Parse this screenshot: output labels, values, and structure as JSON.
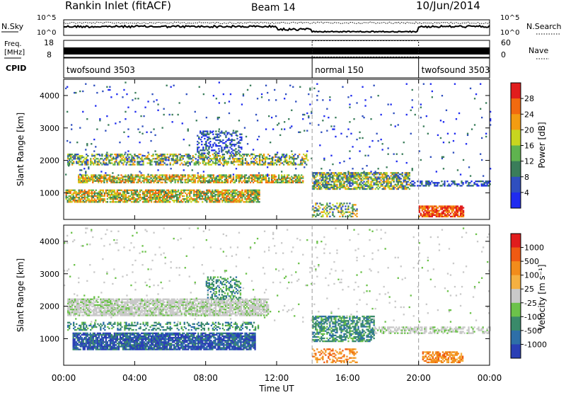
{
  "header": {
    "station": "Rankin Inlet (fitACF)",
    "beam": "Beam 14",
    "date": "10/Jun/2014"
  },
  "top_panels": {
    "nsky_label": "N.Sky",
    "nsky_ticks": [
      "10^5",
      "10^0"
    ],
    "nsearch_label": "N.Search",
    "nsearch_ticks": [
      "10^5",
      "10^0"
    ],
    "freq_label": "Freq.",
    "freq_unit": "[MHz]",
    "freq_ticks": [
      "18",
      "8"
    ],
    "nave_label": "Nave",
    "nave_ticks": [
      "60",
      "0"
    ],
    "cpid_label": "CPID",
    "cpid_segments": [
      {
        "name": "twofsound 3503",
        "start_hr": 0,
        "end_hr": 14
      },
      {
        "name": "normal 150",
        "start_hr": 14,
        "end_hr": 20
      },
      {
        "name": "twofsound 3503",
        "start_hr": 20,
        "end_hr": 24
      }
    ]
  },
  "chart_data": [
    {
      "type": "heatmap",
      "name": "power",
      "xlabel": "Time UT",
      "ylabel": "Slant Range [km]",
      "x_ticks": [
        "00:00",
        "04:00",
        "08:00",
        "12:00",
        "16:00",
        "20:00",
        "00:00"
      ],
      "x_range_hr": [
        0,
        24
      ],
      "y_ticks": [
        1000,
        2000,
        3000,
        4000
      ],
      "y_range": [
        180,
        4500
      ],
      "colorbar_label": "Power [dB]",
      "colorbar_ticks": [
        "4",
        "8",
        "12",
        "16",
        "20",
        "24",
        "28"
      ],
      "colorbar_colors": [
        "#1f2bf0",
        "#2f4fbf",
        "#3a7d5a",
        "#5fb34f",
        "#c8d51f",
        "#f39c12",
        "#f26a0f",
        "#e11d1d"
      ],
      "regions": [
        {
          "t0": 0.2,
          "t1": 13.8,
          "r0": 1850,
          "r1": 2200,
          "density": 0.55,
          "level": "mid"
        },
        {
          "t0": 0.8,
          "t1": 13.5,
          "r0": 1300,
          "r1": 1550,
          "density": 0.7,
          "level": "high"
        },
        {
          "t0": 0.1,
          "t1": 11.0,
          "r0": 700,
          "r1": 1100,
          "density": 0.75,
          "level": "high"
        },
        {
          "t0": 14.0,
          "t1": 19.5,
          "r0": 1100,
          "r1": 1600,
          "density": 0.7,
          "level": "mid"
        },
        {
          "t0": 19.5,
          "t1": 24,
          "r0": 1200,
          "r1": 1350,
          "density": 0.5,
          "level": "low"
        },
        {
          "t0": 20.0,
          "t1": 22.5,
          "r0": 250,
          "r1": 600,
          "density": 0.8,
          "level": "peak"
        },
        {
          "t0": 14.0,
          "t1": 16.5,
          "r0": 250,
          "r1": 700,
          "density": 0.4,
          "level": "mid"
        },
        {
          "t0": 0,
          "t1": 24,
          "r0": 1500,
          "r1": 4400,
          "density": 0.02,
          "level": "low"
        },
        {
          "t0": 7.5,
          "t1": 10.0,
          "r0": 2200,
          "r1": 2900,
          "density": 0.35,
          "level": "low"
        }
      ]
    },
    {
      "type": "heatmap",
      "name": "velocity",
      "xlabel": "Time UT",
      "ylabel": "Slant Range [km]",
      "x_ticks": [
        "00:00",
        "04:00",
        "08:00",
        "12:00",
        "16:00",
        "20:00",
        "00:00"
      ],
      "x_range_hr": [
        0,
        24
      ],
      "y_ticks": [
        1000,
        2000,
        3000,
        4000
      ],
      "y_range": [
        180,
        4500
      ],
      "colorbar_label": "Velocity [m s⁻¹]",
      "colorbar_ticks": [
        "1000",
        "500",
        "100",
        "25",
        "-25",
        "-100",
        "-500",
        "-1000"
      ],
      "colorbar_colors": [
        "#2a3fb5",
        "#2e6fa8",
        "#3a8a6a",
        "#6cc24a",
        "#c9c9c9",
        "#f5b041",
        "#f28c1b",
        "#ef5a12",
        "#e11d1d"
      ],
      "regions": [
        {
          "t0": 0.2,
          "t1": 11.5,
          "r0": 1700,
          "r1": 2200,
          "density": 0.8,
          "level": "zero"
        },
        {
          "t0": 0.2,
          "t1": 11.0,
          "r0": 1250,
          "r1": 1500,
          "density": 0.4,
          "level": "toward"
        },
        {
          "t0": 0.5,
          "t1": 10.8,
          "r0": 650,
          "r1": 1150,
          "density": 0.85,
          "level": "strong_toward"
        },
        {
          "t0": 14.0,
          "t1": 17.5,
          "r0": 900,
          "r1": 1700,
          "density": 0.6,
          "level": "toward"
        },
        {
          "t0": 17.5,
          "t1": 24,
          "r0": 1150,
          "r1": 1350,
          "density": 0.55,
          "level": "zero"
        },
        {
          "t0": 20.2,
          "t1": 22.5,
          "r0": 250,
          "r1": 600,
          "density": 0.7,
          "level": "away"
        },
        {
          "t0": 14.0,
          "t1": 16.5,
          "r0": 250,
          "r1": 700,
          "density": 0.4,
          "level": "away"
        },
        {
          "t0": 8.0,
          "t1": 10.0,
          "r0": 2200,
          "r1": 2900,
          "density": 0.4,
          "level": "toward"
        },
        {
          "t0": 0,
          "t1": 24,
          "r0": 1500,
          "r1": 4400,
          "density": 0.02,
          "level": "zero"
        }
      ]
    }
  ]
}
